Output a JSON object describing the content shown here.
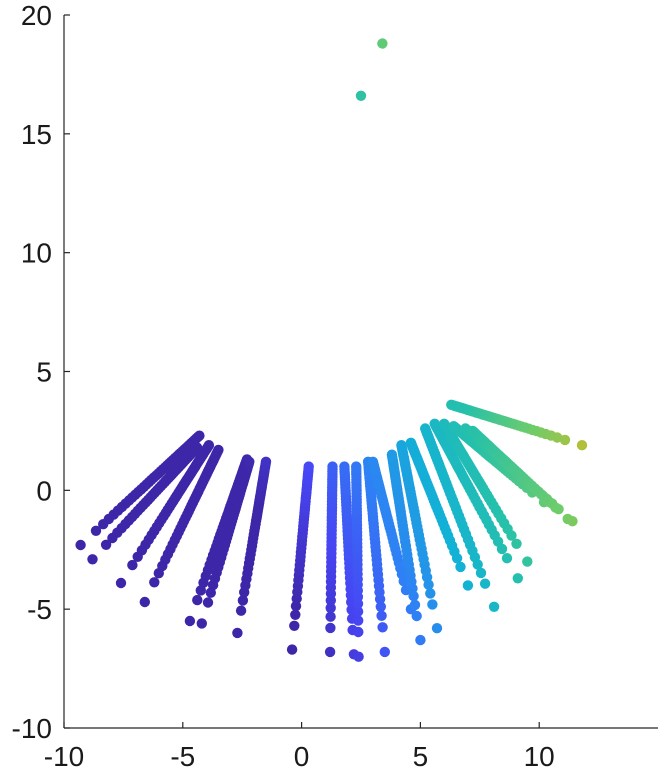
{
  "chart_data": {
    "type": "scatter",
    "title": "",
    "xlabel": "",
    "ylabel": "",
    "xlim": [
      -10,
      15
    ],
    "ylim": [
      -10,
      20
    ],
    "x_ticks": [
      -10,
      -5,
      0,
      5,
      10
    ],
    "y_ticks": [
      -10,
      -5,
      0,
      5,
      10,
      15,
      20
    ],
    "x_tick_labels": [
      "-10",
      "-5",
      "0",
      "5",
      "10"
    ],
    "y_tick_labels": [
      "-10",
      "-5",
      "0",
      "5",
      "10",
      "15",
      "20"
    ],
    "grid": false,
    "legend": "none",
    "colormap": "parula",
    "color_range": [
      -2,
      18
    ],
    "colormap_colors": [
      "#3e26a8",
      "#4745f4",
      "#2f80f5",
      "#12b1d6",
      "#26c1aa",
      "#6fcc6a",
      "#c2bd2e",
      "#f9be3c",
      "#f9fa14"
    ],
    "strands": [
      {
        "start": [
          -9.3,
          -2.3
        ],
        "end": [
          -4.3,
          2.3
        ]
      },
      {
        "start": [
          -8.8,
          -2.9
        ],
        "end": [
          -4.4,
          1.8
        ]
      },
      {
        "start": [
          -7.6,
          -3.9
        ],
        "end": [
          -3.9,
          1.9
        ]
      },
      {
        "start": [
          -6.6,
          -4.7
        ],
        "end": [
          -3.5,
          1.7
        ]
      },
      {
        "start": [
          -4.7,
          -5.5
        ],
        "end": [
          -2.3,
          1.3
        ]
      },
      {
        "start": [
          -4.2,
          -5.6
        ],
        "end": [
          -2.2,
          1.2
        ]
      },
      {
        "start": [
          -2.7,
          -6.0
        ],
        "end": [
          -1.5,
          1.2
        ]
      },
      {
        "start": [
          -0.4,
          -6.7
        ],
        "end": [
          0.3,
          1.0
        ]
      },
      {
        "start": [
          1.2,
          -6.8
        ],
        "end": [
          1.3,
          1.0
        ]
      },
      {
        "start": [
          2.2,
          -6.9
        ],
        "end": [
          1.8,
          1.0
        ]
      },
      {
        "start": [
          2.4,
          -7.0
        ],
        "end": [
          2.3,
          1.0
        ]
      },
      {
        "start": [
          3.5,
          -6.8
        ],
        "end": [
          2.8,
          1.2
        ]
      },
      {
        "start": [
          4.6,
          -5.0
        ],
        "end": [
          3.0,
          1.2
        ]
      },
      {
        "start": [
          5.0,
          -6.3
        ],
        "end": [
          3.8,
          1.5
        ]
      },
      {
        "start": [
          5.7,
          -5.8
        ],
        "end": [
          4.2,
          1.9
        ]
      },
      {
        "start": [
          7.0,
          -4.0
        ],
        "end": [
          4.6,
          2.0
        ]
      },
      {
        "start": [
          8.1,
          -4.9
        ],
        "end": [
          5.2,
          2.6
        ]
      },
      {
        "start": [
          9.1,
          -3.7
        ],
        "end": [
          5.6,
          2.8
        ]
      },
      {
        "start": [
          9.5,
          -3.0
        ],
        "end": [
          6.0,
          2.8
        ]
      },
      {
        "start": [
          10.2,
          -0.5
        ],
        "end": [
          6.4,
          2.7
        ]
      },
      {
        "start": [
          11.4,
          -1.3
        ],
        "end": [
          6.9,
          2.6
        ]
      },
      {
        "start": [
          11.2,
          -1.2
        ],
        "end": [
          7.2,
          2.5
        ]
      },
      {
        "start": [
          11.8,
          1.9
        ],
        "end": [
          6.3,
          3.6
        ]
      }
    ],
    "points": [
      {
        "x": 2.5,
        "y": 16.6
      },
      {
        "x": 3.4,
        "y": 18.8
      }
    ]
  }
}
